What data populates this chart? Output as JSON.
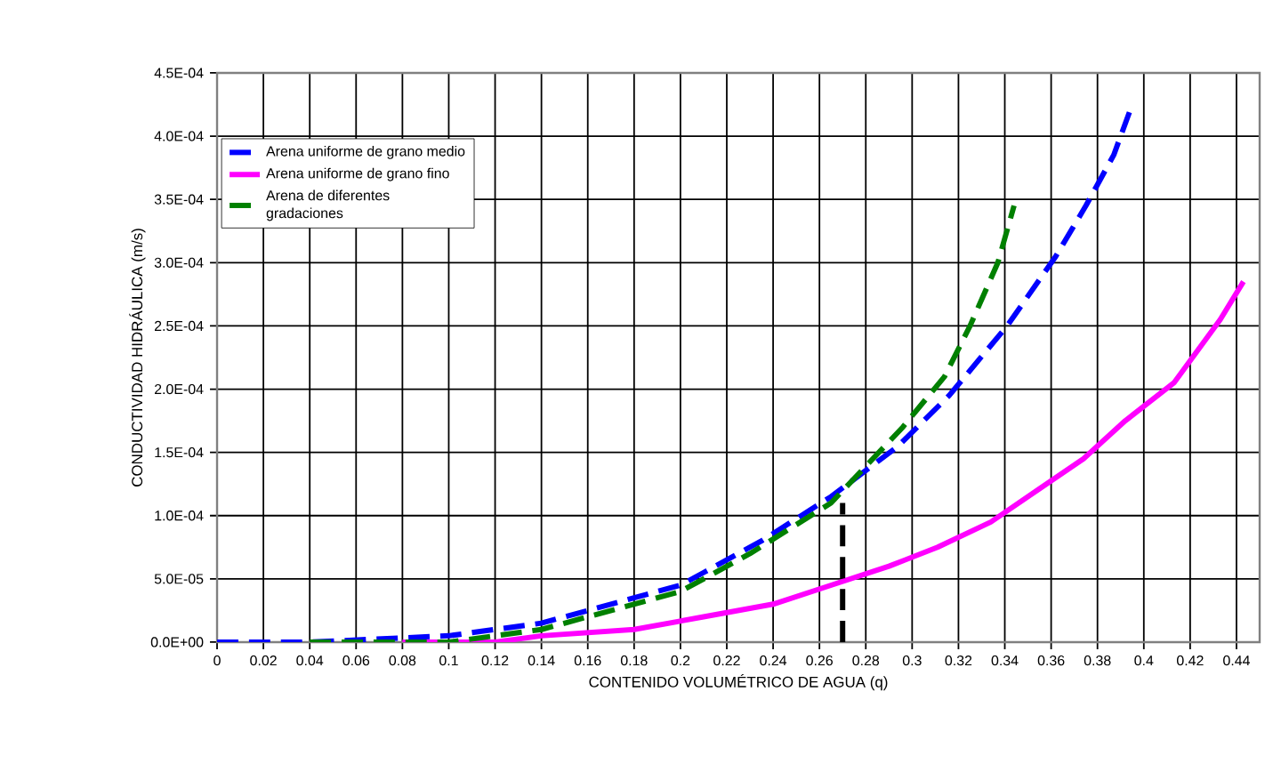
{
  "chart_data": {
    "type": "line",
    "xlabel": "CONTENIDO VOLUMÉTRICO DE AGUA (q)",
    "ylabel": "CONDUCTIVIDAD HIDRÁULICA (m/s)",
    "xlim": [
      0,
      0.45
    ],
    "ylim": [
      0,
      0.00045
    ],
    "xticks": [
      0,
      0.02,
      0.04,
      0.06,
      0.08,
      0.1,
      0.12,
      0.14,
      0.16,
      0.18,
      0.2,
      0.22,
      0.24,
      0.26,
      0.28,
      0.3,
      0.32,
      0.34,
      0.36,
      0.38,
      0.4,
      0.42,
      0.44
    ],
    "yticks": [
      {
        "value": 0,
        "label": "0.0E+00"
      },
      {
        "value": 5e-05,
        "label": "5.0E-05"
      },
      {
        "value": 0.0001,
        "label": "1.0E-04"
      },
      {
        "value": 0.00015,
        "label": "1.5E-04"
      },
      {
        "value": 0.0002,
        "label": "2.0E-04"
      },
      {
        "value": 0.00025,
        "label": "2.5E-04"
      },
      {
        "value": 0.0003,
        "label": "3.0E-04"
      },
      {
        "value": 0.00035,
        "label": "3.5E-04"
      },
      {
        "value": 0.0004,
        "label": "4.0E-04"
      },
      {
        "value": 0.00045,
        "label": "4.5E-04"
      }
    ],
    "grid": true,
    "legend": "top left",
    "marker": "none",
    "series": [
      {
        "name": "Arena uniforme de grano medio",
        "color": "#0000ff",
        "line_style": "dashed",
        "x": [
          0,
          0.04,
          0.1,
          0.14,
          0.18,
          0.2,
          0.21,
          0.235,
          0.265,
          0.294,
          0.316,
          0.341,
          0.362,
          0.375,
          0.387,
          0.394
        ],
        "values": [
          0,
          0,
          5e-06,
          1.5e-05,
          3.5e-05,
          4.5e-05,
          5.5e-05,
          8e-05,
          0.000115,
          0.000155,
          0.000195,
          0.00025,
          0.000305,
          0.000345,
          0.000385,
          0.00042
        ]
      },
      {
        "name": "Arena uniforme de grano fino",
        "color": "#ff00ff",
        "line_style": "solid",
        "x": [
          0.08,
          0.12,
          0.14,
          0.18,
          0.21,
          0.24,
          0.265,
          0.29,
          0.311,
          0.334,
          0.354,
          0.374,
          0.392,
          0.413,
          0.433,
          0.443
        ],
        "values": [
          0,
          0,
          5e-06,
          1e-05,
          2e-05,
          3e-05,
          4.5e-05,
          6e-05,
          7.5e-05,
          9.5e-05,
          0.00012,
          0.000145,
          0.000175,
          0.000205,
          0.000255,
          0.000285
        ]
      },
      {
        "name": "Arena de diferentes gradaciones",
        "color": "#008000",
        "line_style": "dashed",
        "x": [
          0.04,
          0.1,
          0.14,
          0.17,
          0.2,
          0.23,
          0.265,
          0.296,
          0.314,
          0.325,
          0.337,
          0.344
        ],
        "values": [
          0,
          0,
          1e-05,
          2.5e-05,
          4e-05,
          7e-05,
          0.00011,
          0.00017,
          0.00021,
          0.00025,
          0.0003,
          0.000345
        ]
      },
      {
        "color": "#000000",
        "line_style": "dashed",
        "x": [
          0.27,
          0.27
        ],
        "values": [
          0,
          0.00011
        ]
      }
    ]
  }
}
